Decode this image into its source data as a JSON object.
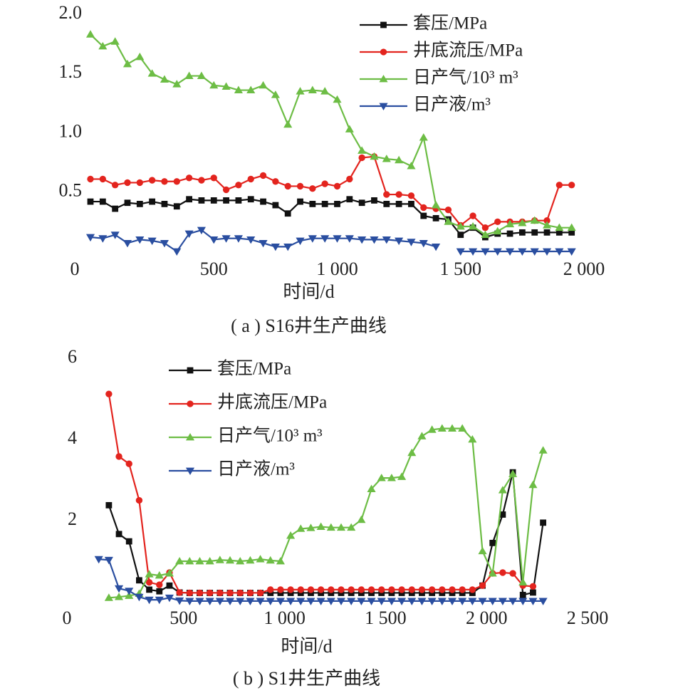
{
  "chart_data": [
    {
      "type": "line",
      "caption": "( a ) S16井生产曲线",
      "xlabel": "时间/d",
      "x": [
        0,
        50,
        100,
        150,
        200,
        250,
        300,
        350,
        400,
        450,
        500,
        550,
        600,
        650,
        700,
        750,
        800,
        850,
        900,
        950,
        1000,
        1050,
        1100,
        1150,
        1200,
        1250,
        1300,
        1350,
        1400,
        1450,
        1500,
        1550,
        1600,
        1650,
        1700,
        1750,
        1800,
        1850,
        1900,
        1950
      ],
      "xlim": [
        0,
        2000
      ],
      "xticks": [
        0,
        500,
        {
          "value": 1000,
          "label": "1 000"
        },
        {
          "value": 1500,
          "label": "1 500"
        },
        {
          "value": 2000,
          "label": "2 000"
        }
      ],
      "ylim": [
        0,
        2
      ],
      "yticks": [
        {
          "value": 0.5,
          "label": "0.5"
        },
        {
          "value": 1,
          "label": "1.0"
        },
        {
          "value": 1.5,
          "label": "1.5"
        },
        {
          "value": 2,
          "label": "2.0"
        }
      ],
      "legend": "upper right",
      "series": [
        {
          "name": "套压/MPa",
          "color": "#111111",
          "marker": "square",
          "values": [
            0.42,
            0.42,
            0.36,
            0.41,
            0.4,
            0.42,
            0.4,
            0.38,
            0.44,
            0.43,
            0.43,
            0.43,
            0.43,
            0.44,
            0.42,
            0.39,
            0.32,
            0.42,
            0.4,
            0.4,
            0.4,
            0.44,
            0.41,
            0.43,
            0.4,
            0.4,
            0.4,
            0.3,
            0.28,
            0.27,
            0.14,
            0.2,
            0.12,
            0.15,
            0.15,
            0.16,
            0.16,
            0.16,
            0.16,
            0.16
          ]
        },
        {
          "name": "井底流压/MPa",
          "color": "#e3241e",
          "marker": "circle",
          "values": [
            0.61,
            0.61,
            0.56,
            0.58,
            0.58,
            0.6,
            0.59,
            0.59,
            0.62,
            0.6,
            0.62,
            0.52,
            0.56,
            0.61,
            0.64,
            0.59,
            0.55,
            0.55,
            0.53,
            0.57,
            0.55,
            0.61,
            0.79,
            0.8,
            0.48,
            0.48,
            0.47,
            0.37,
            0.36,
            0.35,
            0.22,
            0.3,
            0.2,
            0.25,
            0.25,
            0.25,
            0.26,
            0.26,
            0.56,
            0.56
          ]
        },
        {
          "name": "日产气/10³ m³",
          "color": "#6dbd45",
          "marker": "triangle-up",
          "values": [
            1.83,
            1.73,
            1.77,
            1.58,
            1.64,
            1.5,
            1.45,
            1.41,
            1.48,
            1.48,
            1.4,
            1.39,
            1.36,
            1.36,
            1.4,
            1.32,
            1.07,
            1.35,
            1.36,
            1.35,
            1.28,
            1.03,
            0.85,
            0.8,
            0.78,
            0.77,
            0.72,
            0.96,
            0.39,
            0.25,
            0.21,
            0.21,
            0.14,
            0.17,
            0.23,
            0.24,
            0.26,
            0.22,
            0.2,
            0.2
          ]
        },
        {
          "name": "日产液/m³",
          "color": "#2a4ea0",
          "marker": "triangle-down",
          "values": [
            0.12,
            0.11,
            0.14,
            0.07,
            0.1,
            0.09,
            0.07,
            0.0,
            0.15,
            0.18,
            0.1,
            0.11,
            0.11,
            0.1,
            0.07,
            0.04,
            0.04,
            0.09,
            0.11,
            0.11,
            0.11,
            0.11,
            0.1,
            0.1,
            0.1,
            0.09,
            0.08,
            0.07,
            0.04,
            null,
            0,
            0,
            0,
            0,
            0,
            0,
            0,
            0,
            0,
            0
          ]
        }
      ]
    },
    {
      "type": "line",
      "caption": "( b ) S1井生产曲线",
      "xlabel": "时间/d",
      "x": [
        80,
        130,
        180,
        230,
        280,
        330,
        380,
        430,
        480,
        530,
        580,
        630,
        680,
        730,
        780,
        830,
        880,
        930,
        980,
        1030,
        1080,
        1130,
        1180,
        1230,
        1280,
        1330,
        1380,
        1430,
        1480,
        1530,
        1580,
        1630,
        1680,
        1730,
        1780,
        1830,
        1880,
        1930,
        1980,
        2030,
        2080,
        2130,
        2180,
        2230,
        2280
      ],
      "xlim": [
        0,
        2500
      ],
      "xticks": [
        0,
        500,
        {
          "value": 1000,
          "label": "1 000"
        },
        {
          "value": 1500,
          "label": "1 500"
        },
        {
          "value": 2000,
          "label": "2 000"
        },
        {
          "value": 2500,
          "label": "2 500"
        }
      ],
      "ylim": [
        0,
        6
      ],
      "yticks": [
        2,
        4,
        6
      ],
      "legend": "upper left",
      "series": [
        {
          "name": "套压/MPa",
          "color": "#111111",
          "marker": "square",
          "values": [
            null,
            2.38,
            1.67,
            1.49,
            0.53,
            0.3,
            0.26,
            0.4,
            0.23,
            0.22,
            0.22,
            0.22,
            0.22,
            0.22,
            0.22,
            0.22,
            0.22,
            0.22,
            0.22,
            0.22,
            0.22,
            0.22,
            0.22,
            0.22,
            0.22,
            0.22,
            0.22,
            0.22,
            0.22,
            0.22,
            0.22,
            0.22,
            0.22,
            0.22,
            0.22,
            0.22,
            0.22,
            0.22,
            0.4,
            1.45,
            2.15,
            3.19,
            0.17,
            0.23,
            1.95
          ]
        },
        {
          "name": "井底流压/MPa",
          "color": "#e3241e",
          "marker": "circle",
          "values": [
            null,
            5.12,
            3.58,
            3.4,
            2.5,
            0.48,
            0.42,
            0.72,
            0.23,
            0.22,
            0.22,
            0.22,
            0.22,
            0.22,
            0.22,
            0.22,
            0.22,
            0.3,
            0.3,
            0.3,
            0.3,
            0.3,
            0.3,
            0.3,
            0.3,
            0.3,
            0.3,
            0.3,
            0.3,
            0.3,
            0.3,
            0.3,
            0.3,
            0.3,
            0.3,
            0.3,
            0.3,
            0.3,
            0.4,
            0.7,
            0.72,
            0.7,
            0.4,
            0.38,
            null
          ]
        },
        {
          "name": "日产气/10³ m³",
          "color": "#6dbd45",
          "marker": "triangle-up",
          "values": [
            null,
            0.1,
            0.12,
            0.15,
            0.2,
            0.68,
            0.65,
            0.7,
            1.0,
            1.0,
            1.0,
            1.0,
            1.03,
            1.02,
            1.0,
            1.02,
            1.05,
            1.02,
            1.0,
            1.63,
            1.8,
            1.82,
            1.85,
            1.83,
            1.83,
            1.83,
            2.02,
            2.78,
            3.05,
            3.05,
            3.08,
            3.67,
            4.08,
            4.24,
            4.27,
            4.27,
            4.27,
            4.0,
            1.25,
            0.7,
            2.75,
            3.15,
            0.48,
            2.88,
            3.73
          ]
        },
        {
          "name": "日产液/m³",
          "color": "#2a4ea0",
          "marker": "triangle-down",
          "values": [
            1.05,
            1.03,
            0.33,
            0.27,
            0.12,
            0.05,
            0.05,
            0.1,
            0.03,
            0.02,
            0.02,
            0.02,
            0.02,
            0.02,
            0.02,
            0.02,
            0.02,
            0.02,
            0.02,
            0.02,
            0.02,
            0.02,
            0.02,
            0.02,
            0.02,
            0.02,
            0.02,
            0.02,
            0.02,
            0.02,
            0.02,
            0.02,
            0.02,
            0.02,
            0.02,
            0.02,
            0.02,
            0.02,
            0.02,
            0.02,
            0.02,
            0.02,
            0.02,
            0.02,
            0.02
          ]
        }
      ]
    }
  ]
}
